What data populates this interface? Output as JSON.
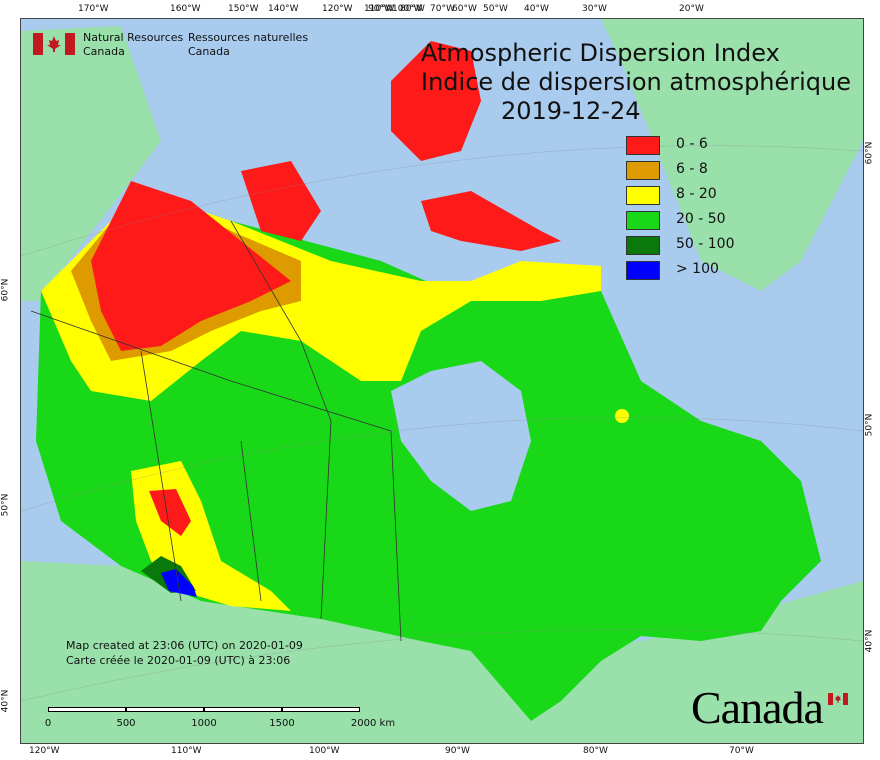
{
  "map": {
    "title_en": "Atmospheric Dispersion Index",
    "title_fr": "Indice de dispersion atmosphérique",
    "date": "2019-12-24",
    "agency_en_line1": "Natural Resources",
    "agency_en_line2": "Canada",
    "agency_fr_line1": "Ressources naturelles",
    "agency_fr_line2": "Canada",
    "created_en": "Map created at 23:06 (UTC) on 2020-01-09",
    "created_fr": "Carte créée le 2020-01-09 (UTC) à 23:06",
    "wordmark": "Canada",
    "legend": [
      {
        "label": "0 - 6",
        "color": "#ff1a1a"
      },
      {
        "label": "6 - 8",
        "color": "#dd9b00"
      },
      {
        "label": "8 - 20",
        "color": "#ffff00"
      },
      {
        "label": "20 - 50",
        "color": "#18d818"
      },
      {
        "label": "50 - 100",
        "color": "#0a780a"
      },
      {
        "label": "> 100",
        "color": "#0000ff"
      }
    ],
    "scale": {
      "labels": [
        "0",
        "500",
        "1000",
        "1500",
        "2000 km"
      ]
    },
    "graticule_top": [
      "170°W",
      "160°W",
      "150°W",
      "140°W",
      "120°W",
      "110°W",
      "100°W",
      "90°W",
      "80°W",
      "70°W",
      "60°W",
      "50°W",
      "40°W",
      "30°W",
      "20°W"
    ],
    "graticule_bottom": [
      "120°W",
      "110°W",
      "100°W",
      "90°W",
      "80°W",
      "70°W"
    ],
    "graticule_left": [
      "60°N",
      "50°N",
      "40°N"
    ],
    "graticule_right": [
      "60°N",
      "50°N",
      "40°N"
    ],
    "colors": {
      "water": "#a8cbee",
      "land_outside": "#99e0aa"
    }
  }
}
